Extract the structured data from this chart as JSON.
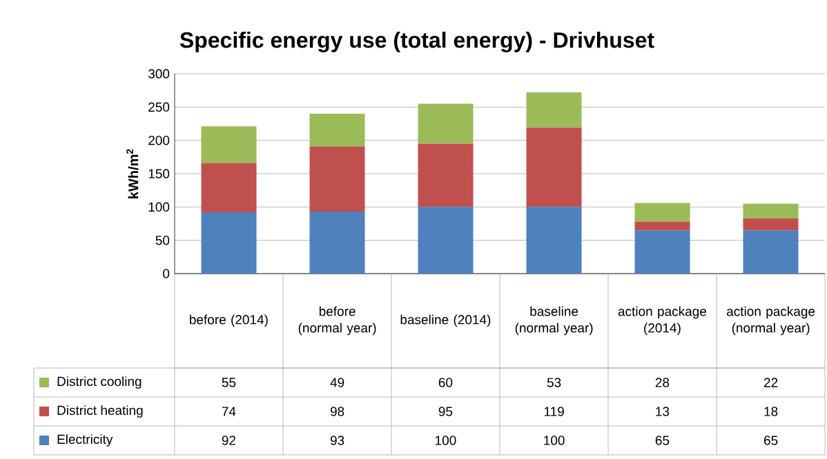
{
  "chart_data": {
    "type": "bar",
    "title": "Specific energy use (total energy) - Drivhuset",
    "ylabel": "kWh/m$^{2}$",
    "categories": [
      "before (2014)",
      "before (normal year)",
      "baseline (2014)",
      "baseline (normal year)",
      "action package (2014)",
      "action package (normal year)"
    ],
    "series": [
      {
        "name": "Electricity",
        "color": "#4f81bd",
        "values": [
          92,
          93,
          100,
          100,
          65,
          65
        ]
      },
      {
        "name": "District heating",
        "color": "#c0504d",
        "values": [
          74,
          98,
          95,
          119,
          13,
          18
        ]
      },
      {
        "name": "District cooling",
        "color": "#9bbb59",
        "values": [
          55,
          49,
          60,
          53,
          28,
          22
        ]
      }
    ],
    "stacked": true,
    "ylim": [
      0,
      300
    ],
    "yticks": [
      0,
      50,
      100,
      150,
      200,
      250,
      300
    ],
    "grid": "y",
    "legend": "bottom",
    "data_labels": true
  }
}
